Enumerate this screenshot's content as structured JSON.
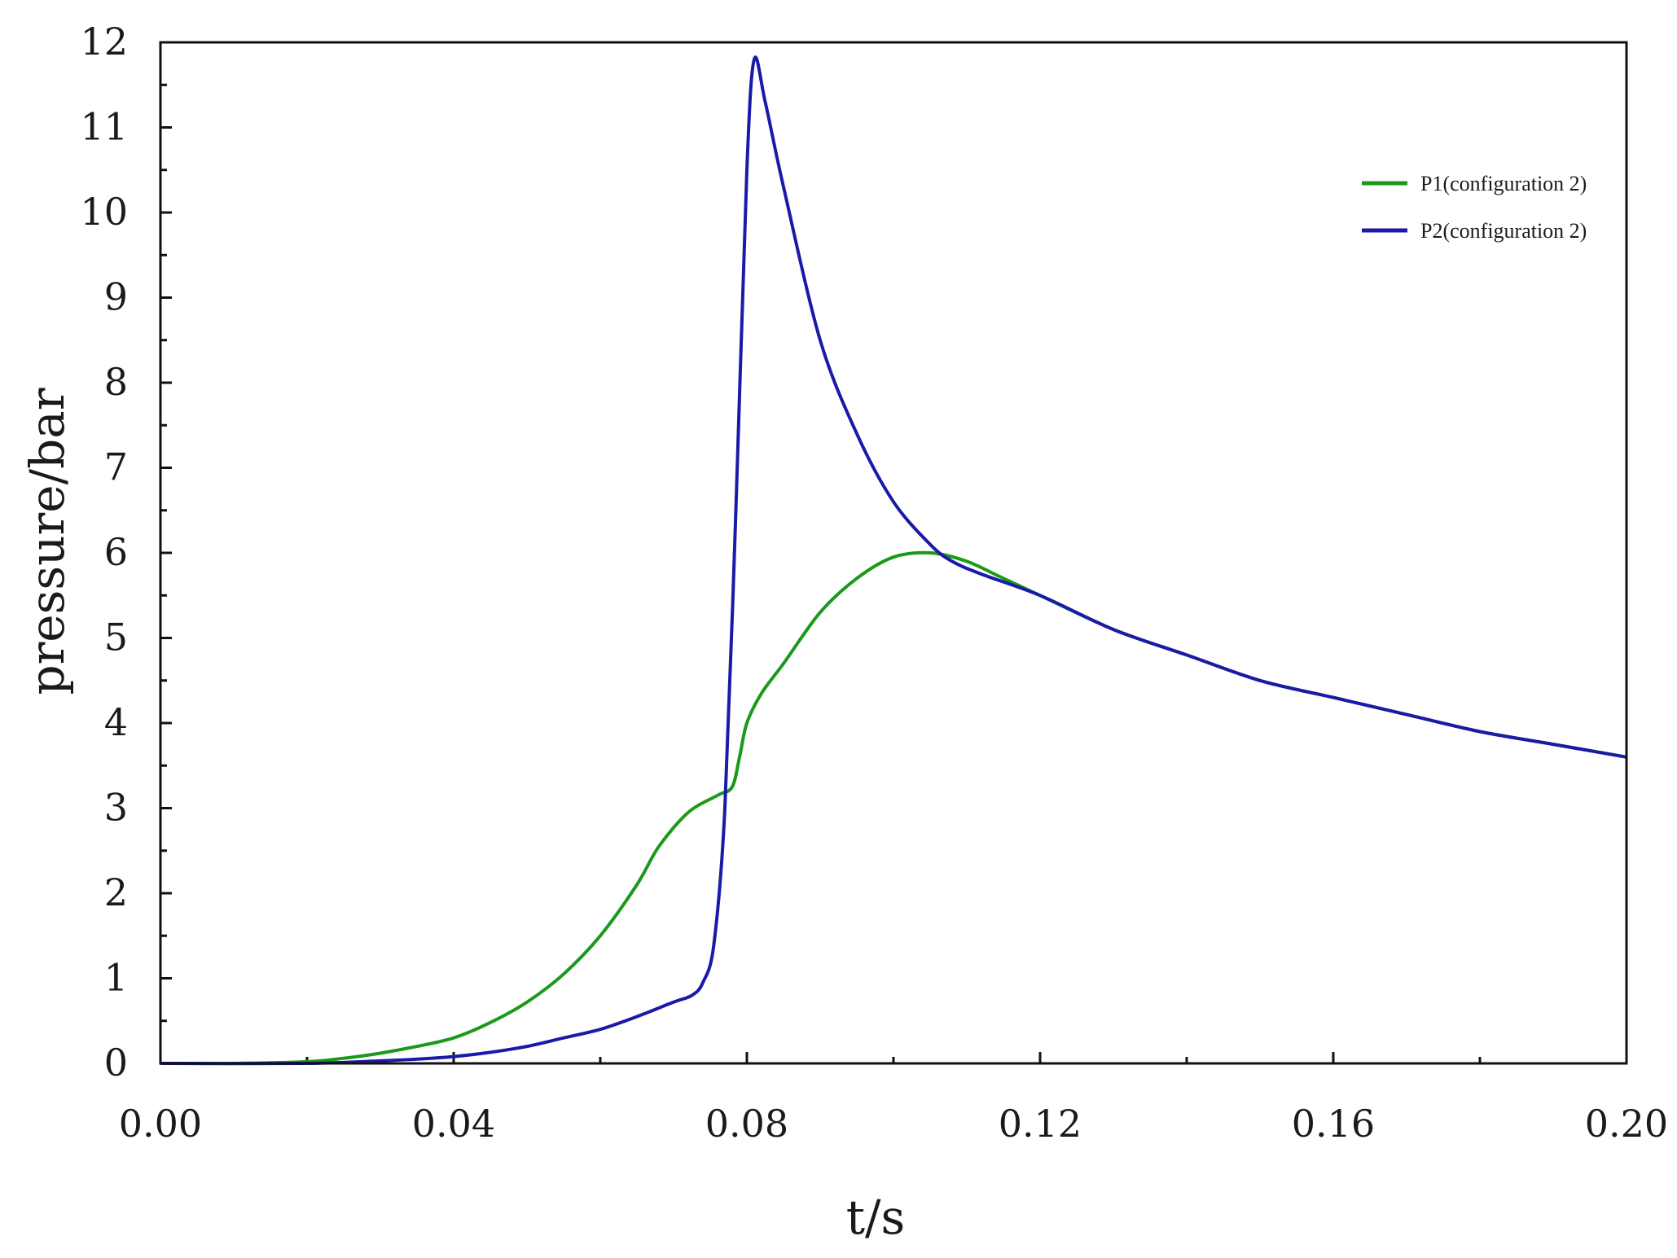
{
  "chart_data": {
    "type": "line",
    "title": "",
    "xlabel": "t/s",
    "ylabel": "pressure/bar",
    "xlim": [
      0,
      0.2
    ],
    "ylim": [
      0,
      12
    ],
    "x_ticks": [
      "0.00",
      "0.04",
      "0.08",
      "0.12",
      "0.16",
      "0.20"
    ],
    "x_tick_values": [
      0,
      0.04,
      0.08,
      0.12,
      0.16,
      0.2
    ],
    "y_ticks": [
      "0",
      "1",
      "2",
      "3",
      "4",
      "5",
      "6",
      "7",
      "8",
      "9",
      "10",
      "11",
      "12"
    ],
    "y_tick_values": [
      0,
      1,
      2,
      3,
      4,
      5,
      6,
      7,
      8,
      9,
      10,
      11,
      12
    ],
    "grid": false,
    "legend_position": "top-right",
    "series": [
      {
        "name": "P1(configuration 2)",
        "color": "#1a9a1a",
        "points": [
          [
            0.0,
            0.0
          ],
          [
            0.01,
            0.0
          ],
          [
            0.02,
            0.02
          ],
          [
            0.025,
            0.06
          ],
          [
            0.03,
            0.12
          ],
          [
            0.035,
            0.2
          ],
          [
            0.04,
            0.3
          ],
          [
            0.045,
            0.48
          ],
          [
            0.05,
            0.72
          ],
          [
            0.055,
            1.05
          ],
          [
            0.06,
            1.5
          ],
          [
            0.065,
            2.1
          ],
          [
            0.068,
            2.55
          ],
          [
            0.072,
            2.95
          ],
          [
            0.076,
            3.15
          ],
          [
            0.078,
            3.25
          ],
          [
            0.079,
            3.6
          ],
          [
            0.08,
            4.0
          ],
          [
            0.082,
            4.35
          ],
          [
            0.085,
            4.7
          ],
          [
            0.09,
            5.3
          ],
          [
            0.095,
            5.7
          ],
          [
            0.1,
            5.95
          ],
          [
            0.105,
            6.0
          ],
          [
            0.11,
            5.9
          ],
          [
            0.115,
            5.7
          ],
          [
            0.12,
            5.5
          ],
          [
            0.13,
            5.1
          ],
          [
            0.14,
            4.8
          ],
          [
            0.15,
            4.5
          ],
          [
            0.16,
            4.3
          ],
          [
            0.17,
            4.1
          ],
          [
            0.18,
            3.9
          ],
          [
            0.19,
            3.75
          ],
          [
            0.2,
            3.6
          ]
        ]
      },
      {
        "name": "P2(configuration 2)",
        "color": "#1a1aa8",
        "points": [
          [
            0.0,
            0.0
          ],
          [
            0.02,
            0.0
          ],
          [
            0.03,
            0.03
          ],
          [
            0.035,
            0.05
          ],
          [
            0.04,
            0.08
          ],
          [
            0.045,
            0.13
          ],
          [
            0.05,
            0.2
          ],
          [
            0.055,
            0.3
          ],
          [
            0.06,
            0.4
          ],
          [
            0.065,
            0.55
          ],
          [
            0.07,
            0.72
          ],
          [
            0.0725,
            0.8
          ],
          [
            0.074,
            0.95
          ],
          [
            0.0755,
            1.4
          ],
          [
            0.077,
            3.0
          ],
          [
            0.0785,
            6.5
          ],
          [
            0.08,
            10.5
          ],
          [
            0.081,
            11.8
          ],
          [
            0.0825,
            11.3
          ],
          [
            0.085,
            10.3
          ],
          [
            0.09,
            8.5
          ],
          [
            0.095,
            7.4
          ],
          [
            0.1,
            6.6
          ],
          [
            0.105,
            6.1
          ],
          [
            0.108,
            5.9
          ],
          [
            0.112,
            5.75
          ],
          [
            0.12,
            5.5
          ],
          [
            0.13,
            5.1
          ],
          [
            0.14,
            4.8
          ],
          [
            0.15,
            4.5
          ],
          [
            0.16,
            4.3
          ],
          [
            0.17,
            4.1
          ],
          [
            0.18,
            3.9
          ],
          [
            0.19,
            3.75
          ],
          [
            0.2,
            3.6
          ]
        ]
      }
    ]
  }
}
